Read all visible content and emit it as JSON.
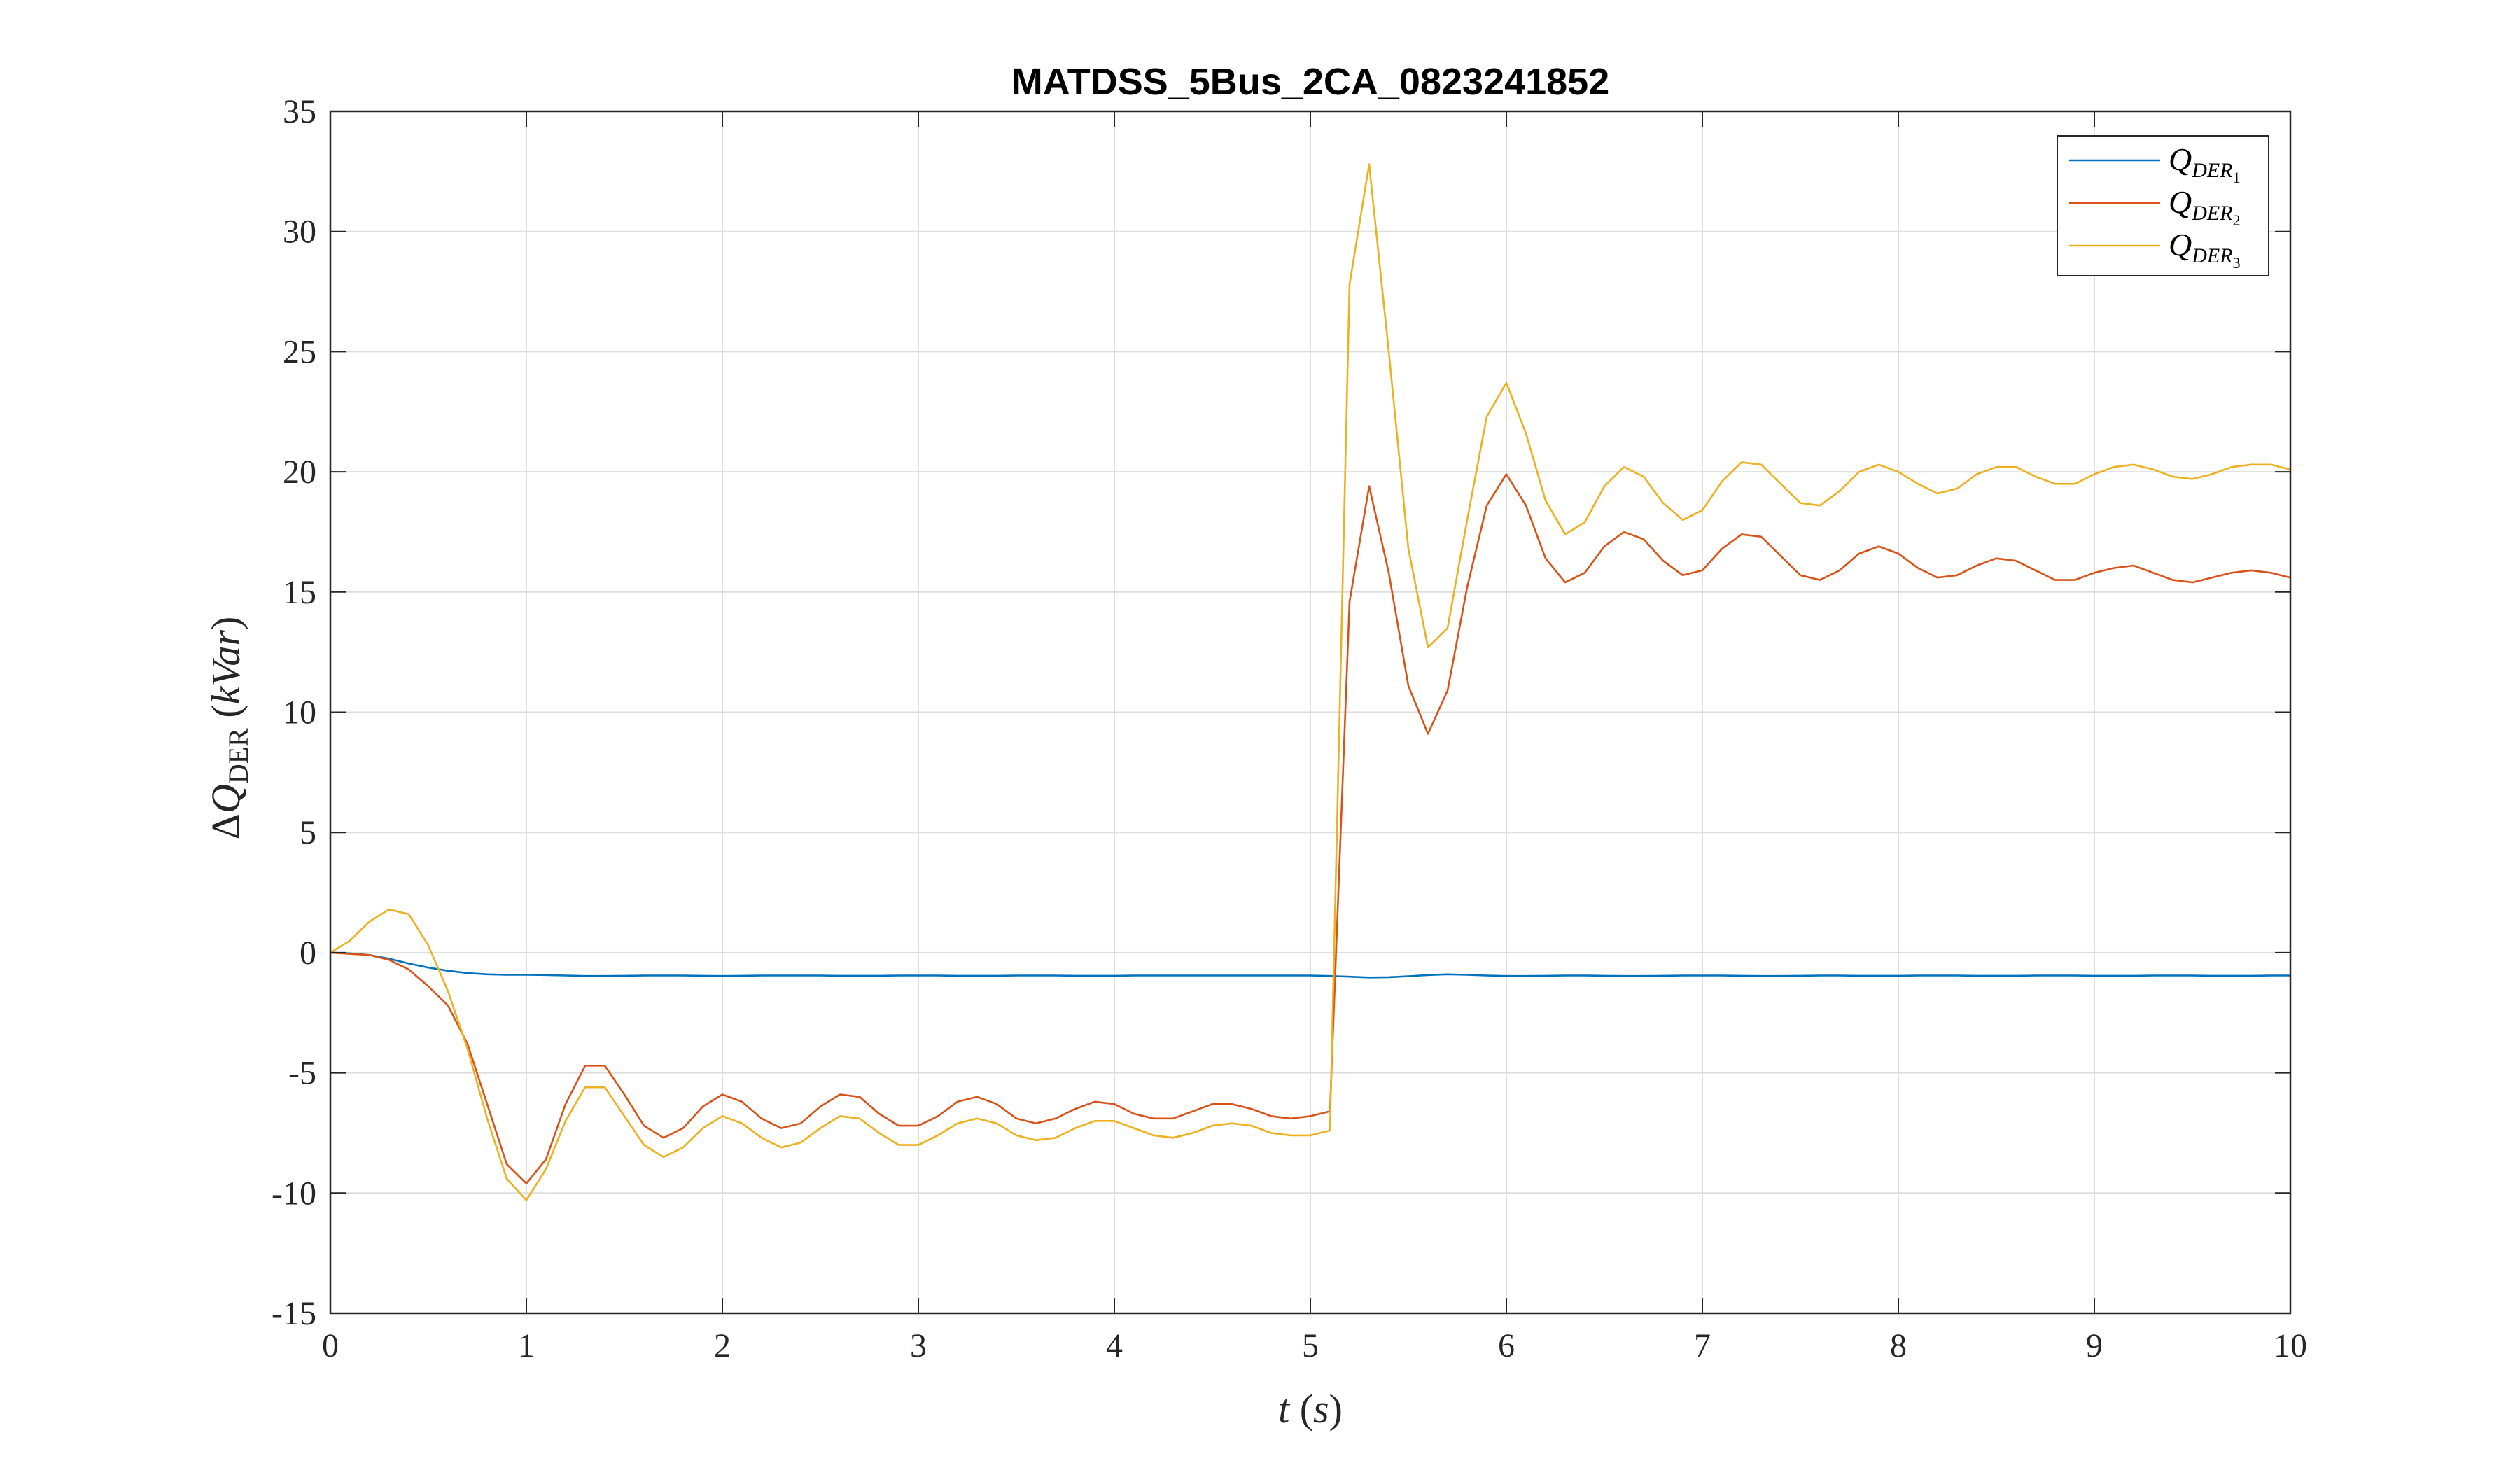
{
  "chart_data": {
    "type": "line",
    "title": "MATDSS_5Bus_2CA_0823241852",
    "xlabel_var": "t",
    "xlabel_unit": "s",
    "ylabel_delta": "Δ",
    "ylabel_var": "Q",
    "ylabel_sub": "DER",
    "ylabel_unit": "kVar",
    "xlim": [
      0,
      10
    ],
    "ylim": [
      -15,
      35
    ],
    "x_ticks": [
      0,
      1,
      2,
      3,
      4,
      5,
      6,
      7,
      8,
      9,
      10
    ],
    "y_ticks": [
      -15,
      -10,
      -5,
      0,
      5,
      10,
      15,
      20,
      25,
      30,
      35
    ],
    "x_tick_labels": [
      "0",
      "1",
      "2",
      "3",
      "4",
      "5",
      "6",
      "7",
      "8",
      "9",
      "10"
    ],
    "y_tick_labels": [
      "-15",
      "-10",
      "-5",
      "0",
      "5",
      "10",
      "15",
      "20",
      "25",
      "30",
      "35"
    ],
    "grid": true,
    "legend_position": "top-right",
    "x": [
      0,
      0.1,
      0.2,
      0.3,
      0.4,
      0.5,
      0.6,
      0.7,
      0.8,
      0.9,
      1.0,
      1.1,
      1.2,
      1.3,
      1.4,
      1.5,
      1.6,
      1.7,
      1.8,
      1.9,
      2.0,
      2.1,
      2.2,
      2.3,
      2.4,
      2.5,
      2.6,
      2.7,
      2.8,
      2.9,
      3.0,
      3.1,
      3.2,
      3.3,
      3.4,
      3.5,
      3.6,
      3.7,
      3.8,
      3.9,
      4.0,
      4.1,
      4.2,
      4.3,
      4.4,
      4.5,
      4.6,
      4.7,
      4.8,
      4.9,
      5.0,
      5.1,
      5.2,
      5.3,
      5.4,
      5.5,
      5.6,
      5.7,
      5.8,
      5.9,
      6.0,
      6.1,
      6.2,
      6.3,
      6.4,
      6.5,
      6.6,
      6.7,
      6.8,
      6.9,
      7.0,
      7.1,
      7.2,
      7.3,
      7.4,
      7.5,
      7.6,
      7.7,
      7.8,
      7.9,
      8.0,
      8.1,
      8.2,
      8.3,
      8.4,
      8.5,
      8.6,
      8.7,
      8.8,
      8.9,
      9.0,
      9.1,
      9.2,
      9.3,
      9.4,
      9.5,
      9.6,
      9.7,
      9.8,
      9.9,
      10.0
    ],
    "series": [
      {
        "name_base": "Q",
        "name_sub": "DER",
        "name_subsub": "1",
        "color": "#0072BD",
        "values": [
          0,
          -0.03,
          -0.1,
          -0.25,
          -0.45,
          -0.62,
          -0.75,
          -0.85,
          -0.9,
          -0.92,
          -0.92,
          -0.93,
          -0.95,
          -0.97,
          -0.97,
          -0.96,
          -0.95,
          -0.95,
          -0.95,
          -0.96,
          -0.97,
          -0.96,
          -0.95,
          -0.95,
          -0.95,
          -0.95,
          -0.96,
          -0.96,
          -0.96,
          -0.95,
          -0.95,
          -0.95,
          -0.96,
          -0.96,
          -0.96,
          -0.95,
          -0.95,
          -0.95,
          -0.96,
          -0.96,
          -0.96,
          -0.95,
          -0.95,
          -0.95,
          -0.95,
          -0.95,
          -0.95,
          -0.95,
          -0.95,
          -0.95,
          -0.95,
          -0.97,
          -1.0,
          -1.03,
          -1.02,
          -0.98,
          -0.93,
          -0.9,
          -0.92,
          -0.95,
          -0.97,
          -0.97,
          -0.96,
          -0.95,
          -0.95,
          -0.96,
          -0.97,
          -0.97,
          -0.96,
          -0.95,
          -0.95,
          -0.95,
          -0.96,
          -0.97,
          -0.97,
          -0.96,
          -0.95,
          -0.95,
          -0.96,
          -0.96,
          -0.96,
          -0.95,
          -0.95,
          -0.95,
          -0.96,
          -0.96,
          -0.96,
          -0.95,
          -0.95,
          -0.95,
          -0.96,
          -0.96,
          -0.96,
          -0.95,
          -0.95,
          -0.95,
          -0.96,
          -0.96,
          -0.96,
          -0.95,
          -0.95
        ]
      },
      {
        "name_base": "Q",
        "name_sub": "DER",
        "name_subsub": "2",
        "color": "#D95319",
        "values": [
          0,
          -0.05,
          -0.1,
          -0.3,
          -0.7,
          -1.4,
          -2.2,
          -3.8,
          -6.3,
          -8.8,
          -9.6,
          -8.6,
          -6.3,
          -4.7,
          -4.7,
          -5.9,
          -7.2,
          -7.7,
          -7.3,
          -6.4,
          -5.9,
          -6.2,
          -6.9,
          -7.3,
          -7.1,
          -6.4,
          -5.9,
          -6.0,
          -6.7,
          -7.2,
          -7.2,
          -6.8,
          -6.2,
          -6.0,
          -6.3,
          -6.9,
          -7.1,
          -6.9,
          -6.5,
          -6.2,
          -6.3,
          -6.7,
          -6.9,
          -6.9,
          -6.6,
          -6.3,
          -6.3,
          -6.5,
          -6.8,
          -6.9,
          -6.8,
          -6.6,
          14.6,
          19.4,
          15.8,
          11.1,
          9.1,
          10.9,
          15.2,
          18.6,
          19.9,
          18.6,
          16.4,
          15.4,
          15.8,
          16.9,
          17.5,
          17.2,
          16.3,
          15.7,
          15.9,
          16.8,
          17.4,
          17.3,
          16.5,
          15.7,
          15.5,
          15.9,
          16.6,
          16.9,
          16.6,
          16.0,
          15.6,
          15.7,
          16.1,
          16.4,
          16.3,
          15.9,
          15.5,
          15.5,
          15.8,
          16.0,
          16.1,
          15.8,
          15.5,
          15.4,
          15.6,
          15.8,
          15.9,
          15.8,
          15.6
        ]
      },
      {
        "name_base": "Q",
        "name_sub": "DER",
        "name_subsub": "3",
        "color": "#EDB120",
        "values": [
          0,
          0.5,
          1.3,
          1.8,
          1.6,
          0.3,
          -1.6,
          -4.0,
          -6.9,
          -9.4,
          -10.3,
          -9.0,
          -7.0,
          -5.6,
          -5.6,
          -6.8,
          -8.0,
          -8.5,
          -8.1,
          -7.3,
          -6.8,
          -7.1,
          -7.7,
          -8.1,
          -7.9,
          -7.3,
          -6.8,
          -6.9,
          -7.5,
          -8.0,
          -8.0,
          -7.6,
          -7.1,
          -6.9,
          -7.1,
          -7.6,
          -7.8,
          -7.7,
          -7.3,
          -7.0,
          -7.0,
          -7.3,
          -7.6,
          -7.7,
          -7.5,
          -7.2,
          -7.1,
          -7.2,
          -7.5,
          -7.6,
          -7.6,
          -7.4,
          27.8,
          32.8,
          25.0,
          16.8,
          12.7,
          13.5,
          18.0,
          22.3,
          23.7,
          21.6,
          18.8,
          17.4,
          17.9,
          19.4,
          20.2,
          19.8,
          18.7,
          18.0,
          18.4,
          19.6,
          20.4,
          20.3,
          19.5,
          18.7,
          18.6,
          19.2,
          20.0,
          20.3,
          20.0,
          19.5,
          19.1,
          19.3,
          19.9,
          20.2,
          20.2,
          19.8,
          19.5,
          19.5,
          19.9,
          20.2,
          20.3,
          20.1,
          19.8,
          19.7,
          19.9,
          20.2,
          20.3,
          20.3,
          20.1
        ]
      }
    ],
    "colors": {
      "axis": "#262626",
      "grid": "#dedede",
      "background": "#ffffff"
    }
  }
}
